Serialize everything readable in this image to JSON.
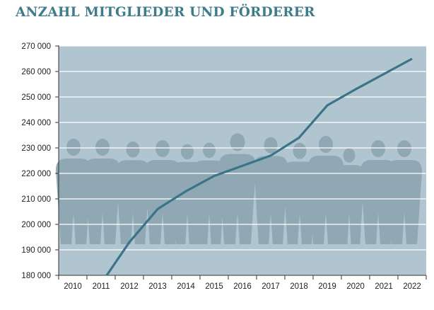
{
  "title": "ANZAHL MITGLIEDER UND FÖRDERER",
  "colors": {
    "title": "#3e7c8c",
    "plot_background": "#b0c5cf",
    "gridline": "#ffffff",
    "line": "#3a7587",
    "silhouettes": "#8fa8b4"
  },
  "chart_data": {
    "type": "line",
    "title": "ANZAHL MITGLIEDER UND FÖRDERER",
    "xlabel": "",
    "ylabel": "",
    "ylim": [
      180000,
      270000
    ],
    "yticks": [
      180000,
      190000,
      200000,
      210000,
      220000,
      230000,
      240000,
      250000,
      260000,
      270000
    ],
    "ytick_labels": [
      "180 000",
      "190 000",
      "200 000",
      "210 000",
      "220 000",
      "230 000",
      "240 000",
      "250 000",
      "260 000",
      "270 000"
    ],
    "categories": [
      "2010",
      "2011",
      "2012",
      "2013",
      "2014",
      "2015",
      "2016",
      "2017",
      "2018",
      "2019",
      "2020",
      "2021",
      "2022"
    ],
    "grid": true,
    "series": [
      {
        "x": [
          2011.7,
          2012.5,
          2013.5,
          2014.5,
          2015.5,
          2016.5,
          2017.5,
          2018.5,
          2019.5,
          2020.5,
          2021.5,
          2022.5
        ],
        "values": [
          180000,
          193000,
          206000,
          213000,
          219000,
          223000,
          227000,
          234000,
          246700,
          253000,
          259000,
          265000
        ]
      }
    ]
  }
}
